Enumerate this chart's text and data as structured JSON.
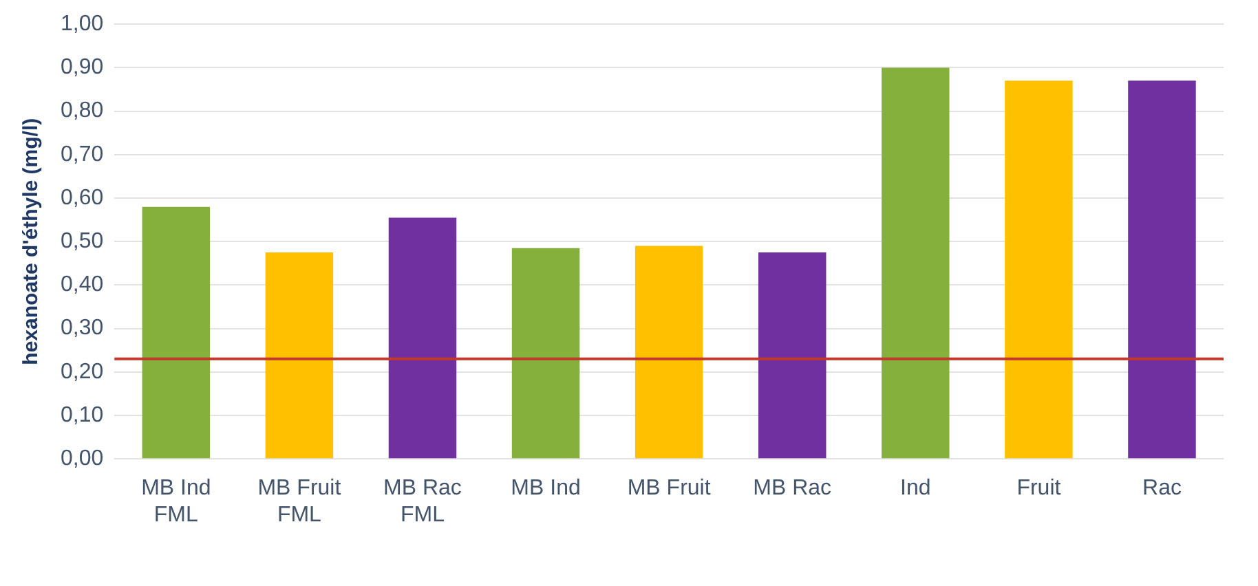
{
  "chart_data": {
    "type": "bar",
    "ylabel": "hexanoate d'éthyle (mg/l)",
    "categories": [
      "MB Ind FML",
      "MB Fruit FML",
      "MB Rac FML",
      "MB Ind",
      "MB Fruit",
      "MB Rac",
      "Ind",
      "Fruit",
      "Rac"
    ],
    "values": [
      0.58,
      0.475,
      0.555,
      0.485,
      0.49,
      0.475,
      0.9,
      0.87,
      0.87
    ],
    "colors": [
      "#86b03c",
      "#ffc000",
      "#7030a0",
      "#86b03c",
      "#ffc000",
      "#7030a0",
      "#86b03c",
      "#ffc000",
      "#7030a0"
    ],
    "ylim": [
      0,
      1
    ],
    "yticks": [
      {
        "value": 0,
        "label": "0,00"
      },
      {
        "value": 0.1,
        "label": "0,10"
      },
      {
        "value": 0.2,
        "label": "0,20"
      },
      {
        "value": 0.3,
        "label": "0,30"
      },
      {
        "value": 0.4,
        "label": "0,40"
      },
      {
        "value": 0.5,
        "label": "0,50"
      },
      {
        "value": 0.6,
        "label": "0,60"
      },
      {
        "value": 0.7,
        "label": "0,70"
      },
      {
        "value": 0.8,
        "label": "0,80"
      },
      {
        "value": 0.9,
        "label": "0,90"
      },
      {
        "value": 1,
        "label": "1,00"
      }
    ],
    "grid": "y",
    "ref_lines": [
      {
        "axis": "y",
        "value": 0.23,
        "color": "#c0392b"
      }
    ]
  }
}
